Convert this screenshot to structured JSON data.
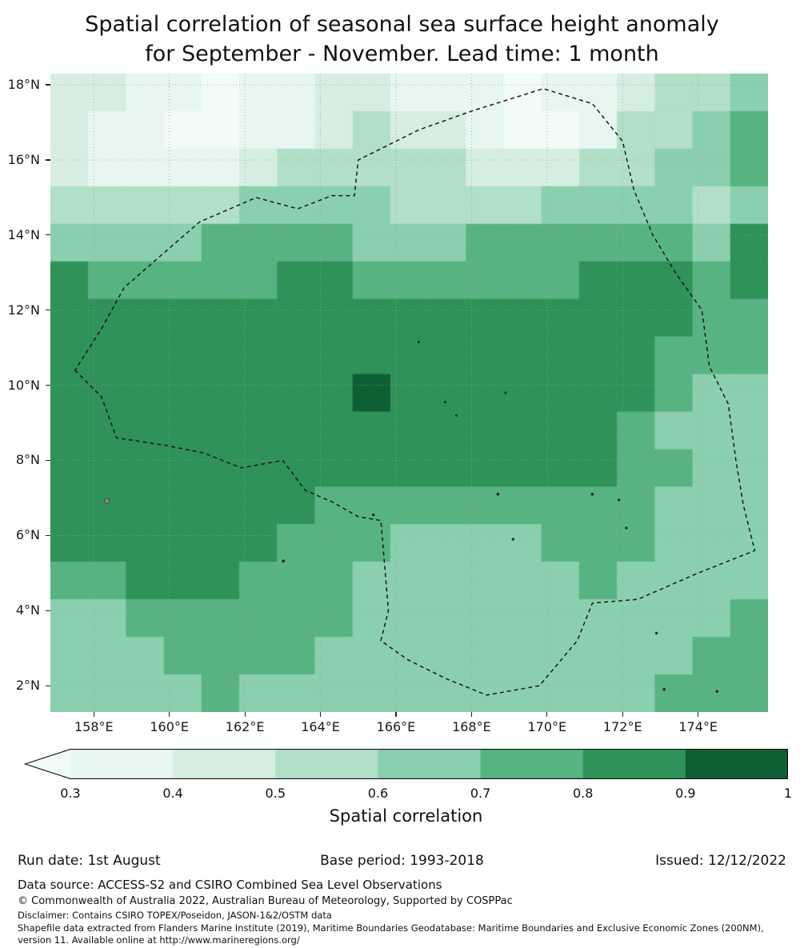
{
  "title": {
    "line1": "Spatial correlation of seasonal sea surface height anomaly",
    "line2": "for September - November. Lead time: 1 month"
  },
  "chart_data": {
    "type": "heatmap",
    "title": "Spatial correlation of seasonal sea surface height anomaly for September - November. Lead time: 1 month",
    "xlabel": "",
    "ylabel": "",
    "lon_range": [
      156.85,
      175.85
    ],
    "lat_range": [
      1.3,
      18.3
    ],
    "x_tick_lons": [
      158,
      160,
      162,
      164,
      166,
      168,
      170,
      172,
      174
    ],
    "x_tick_labels": [
      "158°E",
      "160°E",
      "162°E",
      "164°E",
      "166°E",
      "168°E",
      "170°E",
      "172°E",
      "174°E"
    ],
    "y_tick_lats": [
      18,
      16,
      14,
      12,
      10,
      8,
      6,
      4,
      2
    ],
    "y_tick_labels": [
      "18°N",
      "16°N",
      "14°N",
      "12°N",
      "10°N",
      "8°N",
      "6°N",
      "4°N",
      "2°N"
    ],
    "grid_on": true,
    "grid_lon0": 156.85,
    "grid_dlon": 1.0,
    "grid_lat0": 18.3,
    "grid_dlat": 1.0,
    "grid": [
      [
        0.45,
        0.45,
        0.35,
        0.3,
        0.25,
        0.35,
        0.3,
        0.4,
        0.45,
        0.35,
        0.35,
        0.3,
        0.25,
        0.3,
        0.35,
        0.45,
        0.5,
        0.55,
        0.6
      ],
      [
        0.4,
        0.35,
        0.3,
        0.25,
        0.25,
        0.3,
        0.35,
        0.45,
        0.5,
        0.45,
        0.4,
        0.3,
        0.25,
        0.25,
        0.35,
        0.5,
        0.55,
        0.6,
        0.75
      ],
      [
        0.45,
        0.35,
        0.3,
        0.35,
        0.35,
        0.45,
        0.5,
        0.55,
        0.55,
        0.5,
        0.5,
        0.45,
        0.45,
        0.45,
        0.5,
        0.55,
        0.6,
        0.6,
        0.7
      ],
      [
        0.55,
        0.5,
        0.5,
        0.55,
        0.55,
        0.6,
        0.6,
        0.6,
        0.6,
        0.55,
        0.55,
        0.55,
        0.55,
        0.6,
        0.6,
        0.65,
        0.65,
        0.55,
        0.65
      ],
      [
        0.65,
        0.65,
        0.65,
        0.65,
        0.7,
        0.7,
        0.7,
        0.7,
        0.65,
        0.65,
        0.65,
        0.7,
        0.7,
        0.7,
        0.75,
        0.75,
        0.75,
        0.65,
        0.85
      ],
      [
        0.85,
        0.75,
        0.75,
        0.75,
        0.75,
        0.75,
        0.8,
        0.8,
        0.75,
        0.75,
        0.75,
        0.75,
        0.75,
        0.75,
        0.8,
        0.8,
        0.85,
        0.75,
        0.85
      ],
      [
        0.85,
        0.85,
        0.8,
        0.8,
        0.8,
        0.8,
        0.85,
        0.85,
        0.8,
        0.8,
        0.8,
        0.8,
        0.85,
        0.8,
        0.8,
        0.8,
        0.8,
        0.7,
        0.75
      ],
      [
        0.85,
        0.85,
        0.85,
        0.85,
        0.85,
        0.85,
        0.85,
        0.85,
        0.85,
        0.85,
        0.85,
        0.85,
        0.85,
        0.85,
        0.85,
        0.8,
        0.75,
        0.7,
        0.7
      ],
      [
        0.85,
        0.85,
        0.85,
        0.85,
        0.85,
        0.85,
        0.85,
        0.85,
        0.9,
        0.85,
        0.85,
        0.85,
        0.85,
        0.85,
        0.85,
        0.8,
        0.7,
        0.65,
        0.65
      ],
      [
        0.85,
        0.85,
        0.85,
        0.85,
        0.85,
        0.85,
        0.85,
        0.85,
        0.85,
        0.85,
        0.85,
        0.85,
        0.85,
        0.85,
        0.85,
        0.75,
        0.65,
        0.6,
        0.65
      ],
      [
        0.85,
        0.85,
        0.85,
        0.85,
        0.85,
        0.85,
        0.8,
        0.8,
        0.8,
        0.8,
        0.8,
        0.8,
        0.85,
        0.85,
        0.8,
        0.75,
        0.7,
        0.65,
        0.6
      ],
      [
        0.85,
        0.85,
        0.85,
        0.85,
        0.85,
        0.85,
        0.8,
        0.75,
        0.7,
        0.7,
        0.7,
        0.7,
        0.75,
        0.75,
        0.75,
        0.7,
        0.65,
        0.65,
        0.6
      ],
      [
        0.8,
        0.85,
        0.85,
        0.85,
        0.8,
        0.8,
        0.75,
        0.7,
        0.7,
        0.65,
        0.65,
        0.65,
        0.65,
        0.7,
        0.7,
        0.7,
        0.65,
        0.6,
        0.6
      ],
      [
        0.7,
        0.75,
        0.8,
        0.8,
        0.8,
        0.75,
        0.75,
        0.7,
        0.65,
        0.65,
        0.6,
        0.6,
        0.65,
        0.65,
        0.7,
        0.65,
        0.6,
        0.6,
        0.65
      ],
      [
        0.65,
        0.65,
        0.7,
        0.75,
        0.75,
        0.75,
        0.7,
        0.7,
        0.65,
        0.6,
        0.6,
        0.6,
        0.6,
        0.65,
        0.65,
        0.65,
        0.6,
        0.65,
        0.7
      ],
      [
        0.6,
        0.65,
        0.65,
        0.7,
        0.7,
        0.7,
        0.7,
        0.65,
        0.65,
        0.6,
        0.6,
        0.6,
        0.6,
        0.6,
        0.65,
        0.65,
        0.65,
        0.7,
        0.7
      ],
      [
        0.6,
        0.6,
        0.65,
        0.65,
        0.7,
        0.65,
        0.65,
        0.65,
        0.6,
        0.6,
        0.6,
        0.6,
        0.6,
        0.6,
        0.65,
        0.65,
        0.7,
        0.7,
        0.75
      ]
    ],
    "colorbar": {
      "label": "Spatial correlation",
      "ticks": [
        "0.3",
        "0.4",
        "0.5",
        "0.6",
        "0.7",
        "0.8",
        "0.9",
        "1"
      ],
      "bin_edges": [
        0.3,
        0.4,
        0.5,
        0.6,
        0.7,
        0.8,
        0.9
      ],
      "bin_width": 0.1,
      "bin_colors": [
        "#e7f6f1",
        "#d6eee1",
        "#b2dfc8",
        "#8ad0ae",
        "#58b383",
        "#2f9258",
        "#0f5f35"
      ],
      "under_color": "#f2fbf8",
      "extend": "min"
    },
    "boundary_name": "exclusive-economic-zone-dashed-boundary",
    "boundary": [
      [
        157.5,
        10.4
      ],
      [
        158.2,
        9.7
      ],
      [
        158.6,
        8.6
      ],
      [
        159.9,
        8.4
      ],
      [
        160.9,
        8.2
      ],
      [
        161.9,
        7.8
      ],
      [
        163.0,
        8.0
      ],
      [
        163.6,
        7.2
      ],
      [
        164.3,
        6.9
      ],
      [
        165.0,
        6.5
      ],
      [
        165.6,
        6.4
      ],
      [
        165.7,
        5.2
      ],
      [
        165.8,
        4.0
      ],
      [
        165.6,
        3.2
      ],
      [
        166.3,
        2.7
      ],
      [
        167.3,
        2.2
      ],
      [
        168.4,
        1.75
      ],
      [
        169.8,
        2.0
      ],
      [
        170.8,
        3.2
      ],
      [
        171.2,
        4.2
      ],
      [
        172.4,
        4.3
      ],
      [
        174.0,
        5.0
      ],
      [
        175.5,
        5.6
      ],
      [
        175.2,
        6.8
      ],
      [
        175.0,
        8.0
      ],
      [
        174.8,
        9.5
      ],
      [
        174.3,
        10.5
      ],
      [
        174.1,
        12.0
      ],
      [
        173.4,
        13.0
      ],
      [
        172.8,
        14.0
      ],
      [
        172.3,
        15.2
      ],
      [
        172.0,
        16.5
      ],
      [
        171.2,
        17.5
      ],
      [
        169.9,
        17.9
      ],
      [
        168.0,
        17.3
      ],
      [
        166.6,
        16.8
      ],
      [
        165.0,
        16.0
      ],
      [
        164.9,
        15.05
      ],
      [
        164.3,
        15.05
      ],
      [
        163.4,
        14.7
      ],
      [
        162.3,
        15.0
      ],
      [
        160.8,
        14.35
      ],
      [
        159.6,
        13.3
      ],
      [
        158.8,
        12.6
      ],
      [
        158.2,
        11.5
      ]
    ],
    "islands": [
      {
        "lon": 158.35,
        "lat": 6.92,
        "r": 3.2,
        "fill": "#8a8a8a"
      },
      {
        "lon": 163.02,
        "lat": 5.32,
        "r": 1.6,
        "fill": "#2f2f2f"
      },
      {
        "lon": 165.4,
        "lat": 6.55,
        "r": 1.4,
        "fill": "#2f2f2f"
      },
      {
        "lon": 166.6,
        "lat": 11.15,
        "r": 1.2,
        "fill": "#2f2f2f"
      },
      {
        "lon": 167.3,
        "lat": 9.55,
        "r": 1.2,
        "fill": "#2f2f2f"
      },
      {
        "lon": 167.6,
        "lat": 9.2,
        "r": 1.2,
        "fill": "#2f2f2f"
      },
      {
        "lon": 168.9,
        "lat": 9.8,
        "r": 1.2,
        "fill": "#2f2f2f"
      },
      {
        "lon": 168.7,
        "lat": 7.1,
        "r": 1.5,
        "fill": "#2f2f2f"
      },
      {
        "lon": 169.1,
        "lat": 5.9,
        "r": 1.4,
        "fill": "#2f2f2f"
      },
      {
        "lon": 171.2,
        "lat": 7.1,
        "r": 1.5,
        "fill": "#2f2f2f"
      },
      {
        "lon": 171.9,
        "lat": 6.95,
        "r": 1.3,
        "fill": "#2f2f2f"
      },
      {
        "lon": 172.1,
        "lat": 6.2,
        "r": 1.3,
        "fill": "#2f2f2f"
      },
      {
        "lon": 172.9,
        "lat": 3.4,
        "r": 1.4,
        "fill": "#2f2f2f"
      },
      {
        "lon": 173.1,
        "lat": 1.9,
        "r": 1.5,
        "fill": "#2f2f2f"
      },
      {
        "lon": 174.5,
        "lat": 1.85,
        "r": 1.4,
        "fill": "#2f2f2f"
      }
    ]
  },
  "footer": {
    "run_date": "Run date: 1st August",
    "base_period": "Base period: 1993-2018",
    "issued": "Issued: 12/12/2022",
    "data_source": "Data source: ACCESS-S2 and CSIRO Combined Sea Level Observations",
    "copyright": "© Commonwealth of Australia 2022, Australian Bureau of Meteorology, Supported by COSPPac",
    "disclaimer": "Disclaimer: Contains CSIRO TOPEX/Poseidon, JASON-1&2/OSTM data",
    "shapefile": "Shapefile data extracted from Flanders Marine Institute (2019), Maritime Boundaries Geodatabase: Maritime Boundaries and Exclusive Economic Zones (200NM), version 11. Available online at http://www.marineregions.org/"
  }
}
